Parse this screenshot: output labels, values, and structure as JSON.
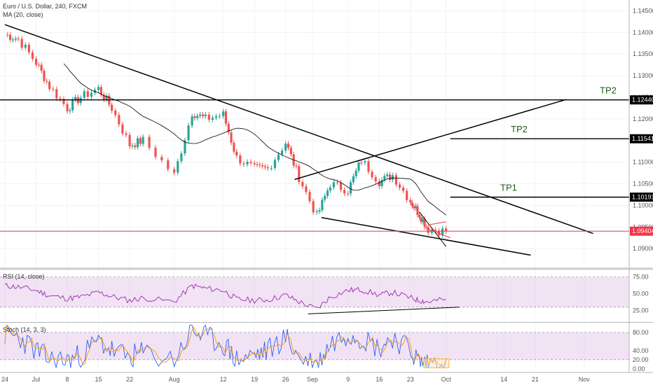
{
  "header": {
    "symbol_line": "Euro / U.S. Dollar, 240, FXCM",
    "ma_label": "MA (20, close)"
  },
  "price_axis": {
    "ticks": [
      "1.14500",
      "1.14000",
      "1.13500",
      "1.13000",
      "1.12500",
      "1.12000",
      "1.11500",
      "1.11000",
      "1.10500",
      "1.10000",
      "1.09500",
      "1.09000"
    ],
    "tick_values": [
      1.145,
      1.14,
      1.135,
      1.13,
      1.125,
      1.12,
      1.115,
      1.11,
      1.105,
      1.1,
      1.095,
      1.09
    ]
  },
  "price_labels": [
    {
      "text": "1.12440",
      "value": 1.1244,
      "bg": "#000000",
      "fg": "#ffffff"
    },
    {
      "text": "1.11541",
      "value": 1.11541,
      "bg": "#000000",
      "fg": "#ffffff"
    },
    {
      "text": "1.10191",
      "value": 1.10191,
      "bg": "#000000",
      "fg": "#ffffff"
    },
    {
      "text": "1.09404",
      "value": 1.09404,
      "bg": "#f23645",
      "fg": "#ffffff"
    }
  ],
  "targets": [
    {
      "label": "TP2",
      "value": 1.1244,
      "x_start": "Jun 24",
      "x_end": "Oct 28"
    },
    {
      "label": "TP2",
      "value": 1.11541,
      "x_start": "Oct 1",
      "x_end": "Nov 3"
    },
    {
      "label": "TP1",
      "value": 1.10191,
      "x_start": "Oct 1",
      "x_end": "Nov 3"
    }
  ],
  "rsi": {
    "label": "RSI (14, close)",
    "ticks": [
      "75.00",
      "50.00",
      "25.00"
    ],
    "tick_values": [
      75,
      50,
      25
    ],
    "band": [
      30,
      70
    ]
  },
  "stoch": {
    "label": "Stoch (14, 3, 3)",
    "ticks": [
      "80.00",
      "40.00",
      "20.00",
      "0.00"
    ],
    "tick_values": [
      80,
      40,
      20,
      0
    ],
    "band": [
      20,
      80
    ]
  },
  "time_axis": {
    "labels": [
      "24",
      "Jul",
      "8",
      "15",
      "22",
      "Aug",
      "12",
      "19",
      "26",
      "Sep",
      "9",
      "16",
      "23",
      "Oct",
      "14",
      "21",
      "Nov"
    ]
  },
  "colors": {
    "up": "#26a69a",
    "down": "#ef5350",
    "ma": "#000000",
    "rsi_line": "#9c27b0",
    "rsi_band": "#e1bee7",
    "stoch_k": "#2962ff",
    "stoch_d": "#ff9800",
    "last_price": "#f23645",
    "tp_text": "#1b5e20",
    "highlight_box": "#ffb74d"
  },
  "chart_data": {
    "type": "line",
    "title": "Euro / U.S. Dollar, 240, FXCM",
    "xlabel": "",
    "ylabel": "",
    "ylim": [
      1.0855,
      1.1475
    ],
    "x": [
      "Jun 24",
      "Jun 27",
      "Jul 1",
      "Jul 4",
      "Jul 8",
      "Jul 11",
      "Jul 15",
      "Jul 18",
      "Jul 22",
      "Jul 25",
      "Aug 1",
      "Aug 5",
      "Aug 8",
      "Aug 12",
      "Aug 15",
      "Aug 19",
      "Aug 22",
      "Aug 26",
      "Aug 29",
      "Sep 2",
      "Sep 5",
      "Sep 9",
      "Sep 12",
      "Sep 16",
      "Sep 19",
      "Sep 23",
      "Sep 25",
      "Sep 27",
      "Oct 1"
    ],
    "series": [
      {
        "values": [
          1.1395,
          1.1385,
          1.133,
          1.1275,
          1.1225,
          1.125,
          1.127,
          1.1225,
          1.114,
          1.115,
          1.107,
          1.1215,
          1.12,
          1.121,
          1.111,
          1.1085,
          1.1085,
          1.1145,
          1.1065,
          1.0975,
          1.105,
          1.1035,
          1.1105,
          1.1055,
          1.107,
          1.101,
          1.098,
          1.0945,
          1.094
        ]
      }
    ],
    "ma_period": 20,
    "rsi_values": [
      62,
      60,
      55,
      47,
      43,
      45,
      52,
      46,
      40,
      44,
      38,
      62,
      58,
      55,
      42,
      40,
      41,
      48,
      38,
      27,
      45,
      55,
      56,
      48,
      52,
      44,
      40,
      38,
      42
    ],
    "stoch_values": [
      75,
      70,
      40,
      20,
      18,
      30,
      60,
      40,
      25,
      35,
      20,
      85,
      70,
      55,
      20,
      30,
      40,
      70,
      25,
      10,
      55,
      80,
      70,
      45,
      70,
      40,
      15,
      12,
      22
    ],
    "trendlines": [
      {
        "from": {
          "x": "Jun 24",
          "y": 1.1418
        },
        "to": {
          "x": "Nov 3",
          "y": 1.0935
        }
      },
      {
        "from": {
          "x": "Sep 3",
          "y": 1.0972
        },
        "to": {
          "x": "Oct 20",
          "y": 1.0885
        }
      },
      {
        "from": {
          "x": "Aug 28",
          "y": 1.106
        },
        "to": {
          "x": "Oct 28",
          "y": 1.1245
        }
      }
    ]
  }
}
